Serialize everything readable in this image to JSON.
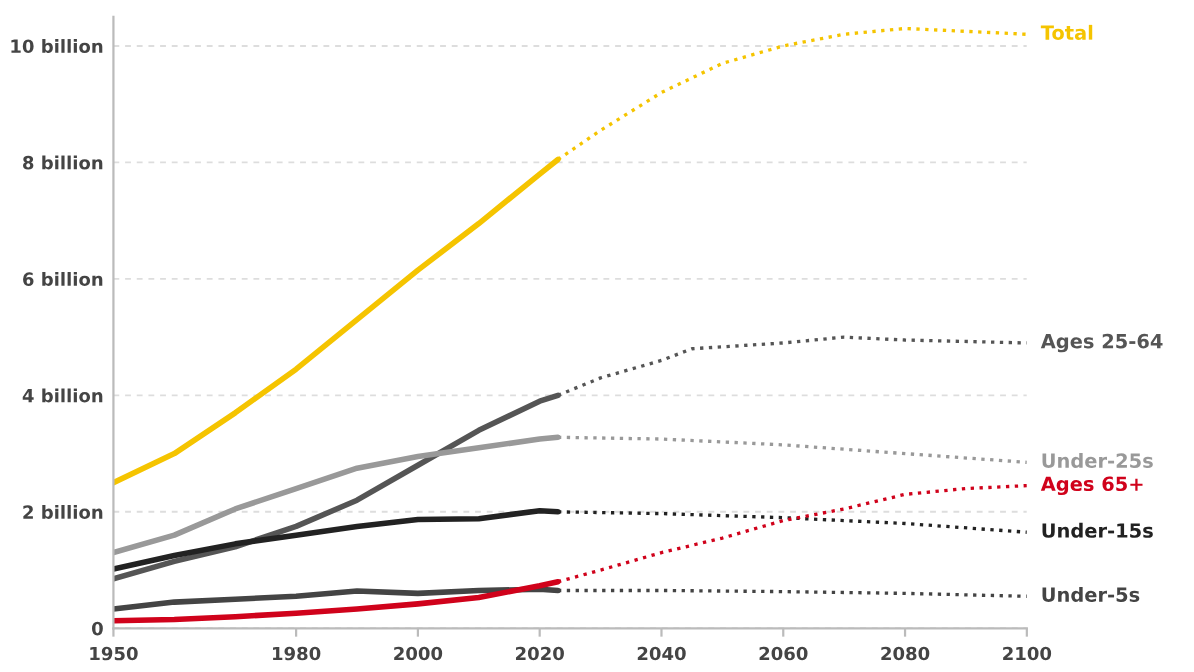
{
  "chart_data": {
    "type": "line",
    "xlim": [
      1950,
      2100
    ],
    "ylim": [
      0,
      10.5
    ],
    "xticks": [
      1950,
      1980,
      2000,
      2020,
      2040,
      2060,
      2080,
      2100
    ],
    "yticks": [
      {
        "value": 0,
        "label": "0"
      },
      {
        "value": 2,
        "label": "2 billion"
      },
      {
        "value": 4,
        "label": "4 billion"
      },
      {
        "value": 6,
        "label": "6 billion"
      },
      {
        "value": 8,
        "label": "8 billion"
      },
      {
        "value": 10,
        "label": "10 billion"
      }
    ],
    "grid": "y",
    "series": [
      {
        "color": "#f5c400",
        "line_style": "solid",
        "x": [
          1950,
          1960,
          1970,
          1980,
          1990,
          2000,
          2010,
          2020,
          2023
        ],
        "values": [
          2.5,
          3.0,
          3.7,
          4.45,
          5.3,
          6.15,
          6.95,
          7.8,
          8.05
        ]
      },
      {
        "name": "Total",
        "color": "#f5c400",
        "line_style": "dotted",
        "x": [
          2023,
          2030,
          2040,
          2050,
          2060,
          2070,
          2080,
          2090,
          2100
        ],
        "values": [
          8.05,
          8.55,
          9.2,
          9.7,
          10.0,
          10.2,
          10.3,
          10.25,
          10.2
        ]
      },
      {
        "color": "#555555",
        "line_style": "solid",
        "x": [
          1950,
          1960,
          1970,
          1980,
          1990,
          2000,
          2010,
          2020,
          2023
        ],
        "values": [
          0.85,
          1.15,
          1.4,
          1.75,
          2.2,
          2.8,
          3.4,
          3.9,
          4.0
        ]
      },
      {
        "name": "Ages 25-64",
        "color": "#555555",
        "line_style": "dotted",
        "x": [
          2023,
          2030,
          2040,
          2045,
          2060,
          2070,
          2080,
          2100
        ],
        "values": [
          4.0,
          4.3,
          4.6,
          4.8,
          4.9,
          5.0,
          4.95,
          4.9
        ]
      },
      {
        "color": "#999999",
        "line_style": "solid",
        "x": [
          1950,
          1960,
          1970,
          1980,
          1990,
          2000,
          2010,
          2020,
          2023
        ],
        "values": [
          1.3,
          1.6,
          2.05,
          2.4,
          2.75,
          2.95,
          3.1,
          3.25,
          3.28
        ]
      },
      {
        "name": "Under-25s",
        "color": "#999999",
        "line_style": "dotted",
        "x": [
          2023,
          2040,
          2060,
          2080,
          2100
        ],
        "values": [
          3.28,
          3.25,
          3.15,
          3.0,
          2.85
        ]
      },
      {
        "color": "#222222",
        "line_style": "solid",
        "x": [
          1950,
          1960,
          1970,
          1980,
          1990,
          2000,
          2010,
          2020,
          2023
        ],
        "values": [
          1.02,
          1.25,
          1.45,
          1.6,
          1.75,
          1.87,
          1.88,
          2.02,
          2.0
        ]
      },
      {
        "name": "Under-15s",
        "color": "#222222",
        "line_style": "dotted",
        "x": [
          2023,
          2040,
          2060,
          2080,
          2100
        ],
        "values": [
          2.0,
          1.97,
          1.9,
          1.8,
          1.65
        ]
      },
      {
        "color": "#444444",
        "line_style": "solid",
        "x": [
          1950,
          1960,
          1970,
          1980,
          1990,
          2000,
          2010,
          2020,
          2023
        ],
        "values": [
          0.33,
          0.45,
          0.5,
          0.55,
          0.64,
          0.6,
          0.65,
          0.67,
          0.65
        ]
      },
      {
        "name": "Under-5s",
        "color": "#444444",
        "line_style": "dotted",
        "x": [
          2023,
          2040,
          2060,
          2080,
          2100
        ],
        "values": [
          0.65,
          0.65,
          0.63,
          0.6,
          0.55
        ]
      },
      {
        "color": "#d0021b",
        "line_style": "solid",
        "x": [
          1950,
          1960,
          1970,
          1980,
          1990,
          2000,
          2010,
          2020,
          2023
        ],
        "values": [
          0.13,
          0.15,
          0.2,
          0.26,
          0.33,
          0.42,
          0.53,
          0.73,
          0.8
        ]
      },
      {
        "name": "Ages 65+",
        "color": "#d0021b",
        "line_style": "dotted",
        "x": [
          2023,
          2030,
          2040,
          2050,
          2060,
          2070,
          2080,
          2090,
          2100
        ],
        "values": [
          0.8,
          1.0,
          1.3,
          1.55,
          1.85,
          2.05,
          2.3,
          2.4,
          2.45
        ]
      }
    ]
  }
}
